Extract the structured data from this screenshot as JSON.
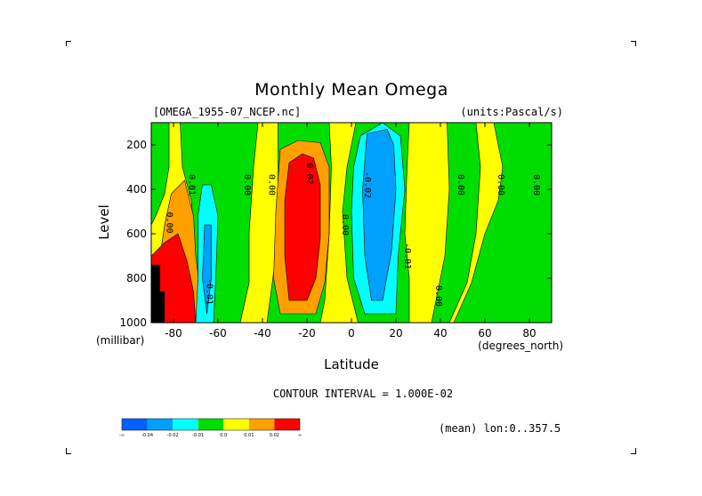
{
  "chart_data": {
    "type": "contour",
    "title": "Monthly Mean Omega",
    "subtitle_left": "[OMEGA_1955-07_NCEP.nc]",
    "subtitle_right": "(units:Pascal/s)",
    "xlabel": "Latitude",
    "x_units": "(degrees_north)",
    "ylabel": "Level",
    "y_units": "(millibar)",
    "xlim": [
      -90,
      90
    ],
    "ylim": [
      1000,
      100
    ],
    "x_ticks": [
      -80,
      -60,
      -40,
      -20,
      0,
      20,
      40,
      60,
      80
    ],
    "y_ticks": [
      1000,
      800,
      600,
      400,
      200
    ],
    "contour_interval_text": "CONTOUR INTERVAL = 1.000E-02",
    "mean_note": "(mean) lon:0..357.5",
    "colorbar": {
      "colors": [
        "#0060ff",
        "#00a0ff",
        "#00ffff",
        "#00dd00",
        "#ffff00",
        "#ffa000",
        "#ff0000"
      ],
      "labels": [
        "-∞",
        "-0.04",
        "-0.02",
        "-0.01",
        "0.0",
        "0.01",
        "0.02",
        "∞"
      ]
    },
    "contour_labels": [
      {
        "text": "0.00",
        "lat": -83,
        "lev": 550
      },
      {
        "text": "0.01",
        "lat": -73,
        "lev": 380
      },
      {
        "text": "0.00",
        "lat": -48,
        "lev": 380
      },
      {
        "text": "0.00",
        "lat": -37,
        "lev": 380
      },
      {
        "text": "0.02",
        "lat": -20,
        "lev": 330
      },
      {
        "text": "0.00",
        "lat": -4,
        "lev": 560
      },
      {
        "text": "-0.02",
        "lat": 6,
        "lev": 380
      },
      {
        "text": "0.00",
        "lat": 48,
        "lev": 380
      },
      {
        "text": "0.00",
        "lat": 66,
        "lev": 380
      },
      {
        "text": "0.00",
        "lat": 82,
        "lev": 380
      },
      {
        "text": "0.00",
        "lat": 38,
        "lev": 880
      },
      {
        "text": "-0.01",
        "lat": -65,
        "lev": 860
      },
      {
        "text": "-0.01",
        "lat": 24,
        "lev": 700
      }
    ]
  }
}
